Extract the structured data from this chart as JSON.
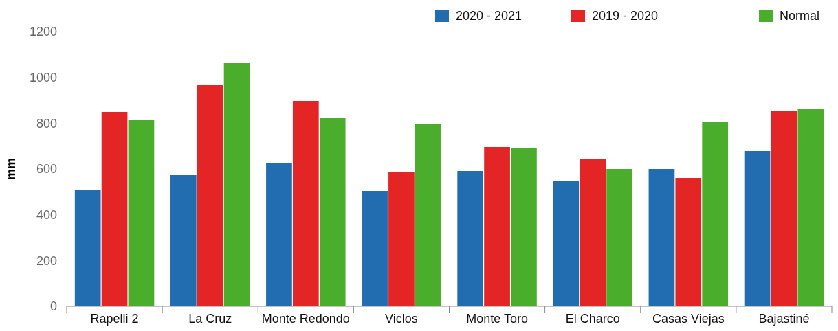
{
  "chart_data": {
    "type": "bar",
    "ylabel": "mm",
    "categories": [
      "Rapelli 2",
      "La Cruz",
      "Monte Redondo",
      "Viclos",
      "Monte Toro",
      "El Charco",
      "Casas Viejas",
      "Bajastiné"
    ],
    "series": [
      {
        "name": "2020 - 2021",
        "color": "#226db0",
        "values": [
          510,
          573,
          624,
          504,
          591,
          549,
          600,
          678
        ]
      },
      {
        "name": "2019 - 2020",
        "color": "#e32526",
        "values": [
          849,
          966,
          897,
          585,
          696,
          645,
          561,
          855
        ]
      },
      {
        "name": "Normal",
        "color": "#4aad2c",
        "values": [
          813,
          1062,
          822,
          798,
          690,
          600,
          807,
          861
        ]
      }
    ],
    "ylim": [
      0,
      1200
    ],
    "yticks": [
      0,
      200,
      400,
      600,
      800,
      1000,
      1200
    ],
    "legend": "top right"
  }
}
